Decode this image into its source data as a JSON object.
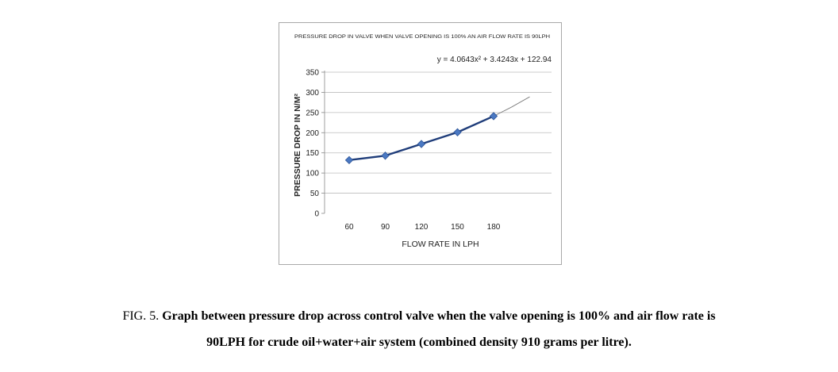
{
  "chart_data": {
    "type": "line",
    "title": "PRESSURE DROP IN  VALVE WHEN VALVE OPENING IS 100% AN AIR FLOW RATE IS 90LPH",
    "xlabel": "FLOW RATE IN LPH",
    "ylabel": "PRESSURE DROP IN N/M²",
    "x": [
      60,
      90,
      120,
      150,
      180
    ],
    "x_tick_labels": [
      "60",
      "90",
      "120",
      "150",
      "180"
    ],
    "y_ticks": [
      0,
      50,
      100,
      150,
      200,
      250,
      300,
      350
    ],
    "y_tick_labels": [
      "0",
      "50",
      "100",
      "150",
      "200",
      "250",
      "300",
      "350"
    ],
    "ylim": [
      0,
      350
    ],
    "grid": "horizontal",
    "series": [
      {
        "values": [
          132,
          143,
          172,
          201,
          241
        ],
        "color": "#1f3d7a",
        "marker": "diamond",
        "marker_color": "#4a78c2"
      }
    ],
    "trendline": {
      "equation": "y = 4.0643x² + 3.4243x + 122.94",
      "color": "#808080",
      "extends_to": 210,
      "end_value": 289
    }
  },
  "caption": {
    "prefix": "FIG. 5. ",
    "text_line1": "Graph between pressure drop across control valve when the valve opening is 100% and air flow rate is",
    "text_line2": "90LPH for crude oil+water+air system (combined density 910 grams per litre)."
  }
}
